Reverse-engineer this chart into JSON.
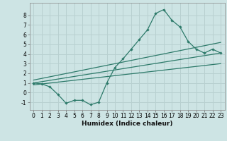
{
  "xlabel": "Humidex (Indice chaleur)",
  "ylabel": "",
  "bg_color": "#cde4e4",
  "grid_color": "#b8d0d0",
  "line_color": "#2d7a6a",
  "xlim": [
    -0.5,
    23.5
  ],
  "ylim": [
    -1.8,
    9.3
  ],
  "x_ticks": [
    0,
    1,
    2,
    3,
    4,
    5,
    6,
    7,
    8,
    9,
    10,
    11,
    12,
    13,
    14,
    15,
    16,
    17,
    18,
    19,
    20,
    21,
    22,
    23
  ],
  "y_ticks": [
    -1,
    0,
    1,
    2,
    3,
    4,
    5,
    6,
    7,
    8
  ],
  "series1_x": [
    0,
    1,
    2,
    3,
    4,
    5,
    6,
    7,
    8,
    9,
    10,
    11,
    12,
    13,
    14,
    15,
    16,
    17,
    18,
    19,
    20,
    21,
    22,
    23
  ],
  "series1_y": [
    1.0,
    0.9,
    0.6,
    -0.2,
    -1.1,
    -0.8,
    -0.8,
    -1.25,
    -1.0,
    1.0,
    2.6,
    3.5,
    4.5,
    5.5,
    6.5,
    8.2,
    8.6,
    7.5,
    6.8,
    5.3,
    4.5,
    4.1,
    4.5,
    4.1
  ],
  "series2_x": [
    0,
    23
  ],
  "series2_y": [
    1.0,
    4.1
  ],
  "series3_x": [
    0,
    23
  ],
  "series3_y": [
    1.3,
    5.2
  ],
  "series4_x": [
    0,
    23
  ],
  "series4_y": [
    0.8,
    3.0
  ],
  "tick_fontsize": 5.5,
  "xlabel_fontsize": 6.5
}
